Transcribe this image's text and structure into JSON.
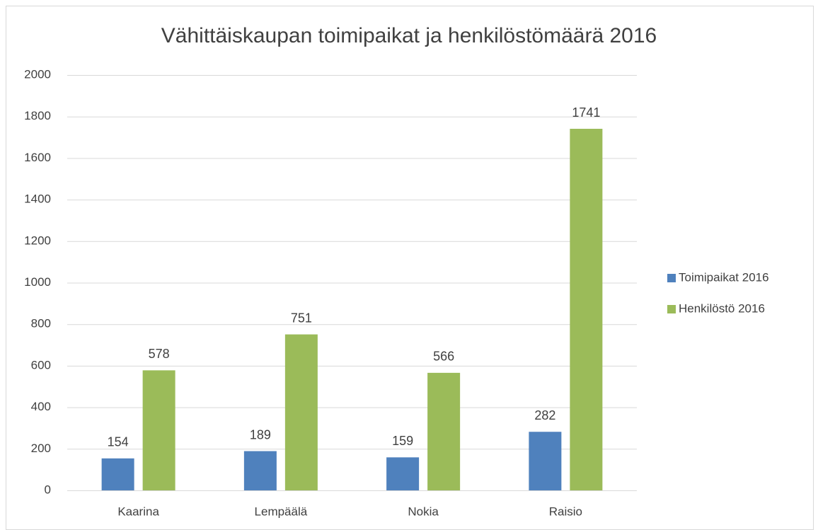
{
  "chart_data": {
    "type": "bar",
    "title": "Vähittäiskaupan toimipaikat ja henkilöstömäärä 2016",
    "categories": [
      "Kaarina",
      "Lempäälä",
      "Nokia",
      "Raisio"
    ],
    "series": [
      {
        "name": "Toimipaikat 2016",
        "color": "#4f81bd",
        "values": [
          154,
          189,
          159,
          282
        ]
      },
      {
        "name": "Henkilöstö 2016",
        "color": "#9bbb59",
        "values": [
          578,
          751,
          566,
          1741
        ]
      }
    ],
    "ylim": [
      0,
      2000
    ],
    "yticks": [
      0,
      200,
      400,
      600,
      800,
      1000,
      1200,
      1400,
      1600,
      1800,
      2000
    ],
    "grid": true,
    "data_labels": true,
    "legend": "right"
  }
}
